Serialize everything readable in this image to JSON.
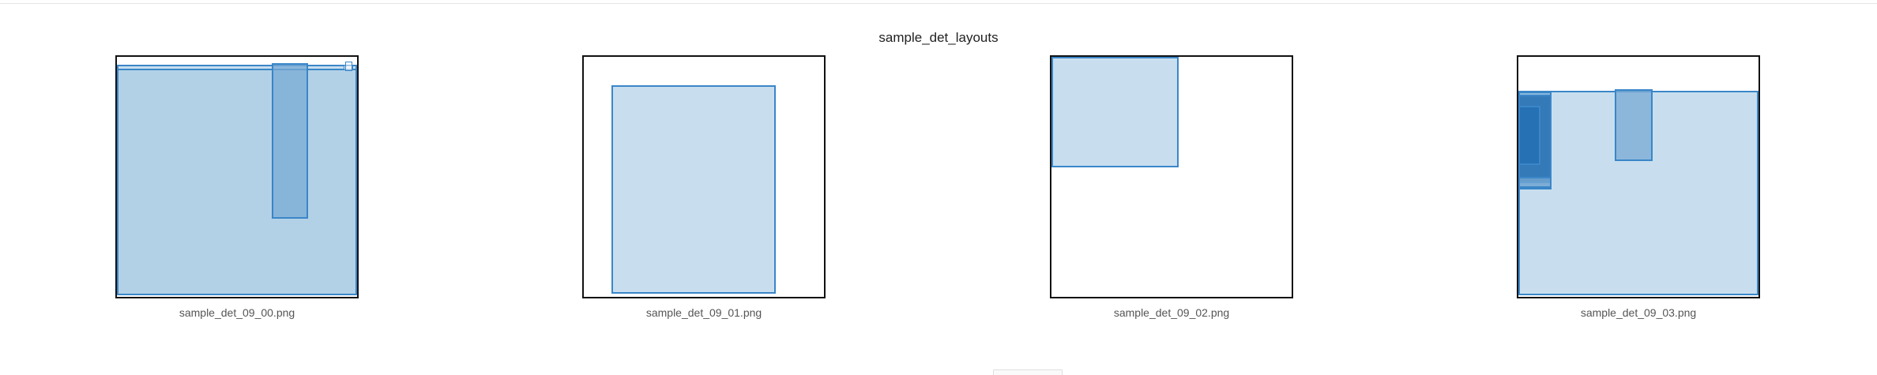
{
  "figure": {
    "title": "sample_det_layouts",
    "panels": [
      {
        "caption": "sample_det_09_00.png"
      },
      {
        "caption": "sample_det_09_01.png"
      },
      {
        "caption": "sample_det_09_02.png"
      },
      {
        "caption": "sample_det_09_03.png"
      }
    ]
  },
  "colors": {
    "box_border": "#3a86c8",
    "box_fill_light": "#a4c8e2",
    "box_fill_dark": "#2470b2",
    "frame": "#111111"
  }
}
